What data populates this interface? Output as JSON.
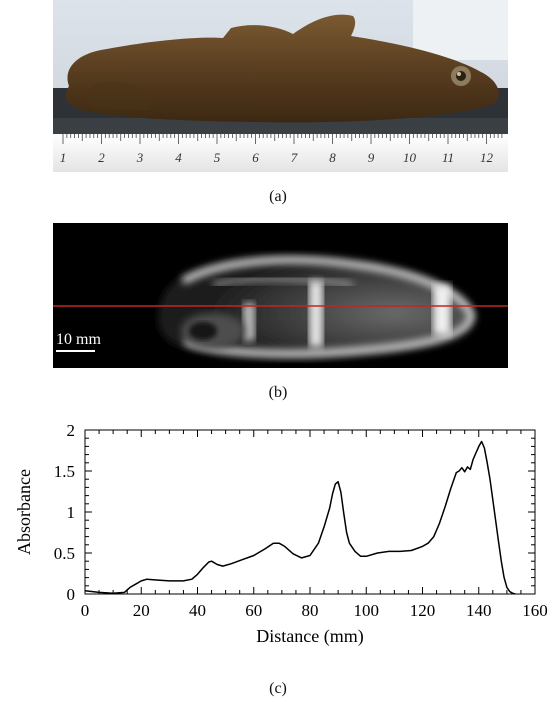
{
  "panels": {
    "a": {
      "caption": "(a)",
      "ruler_numbers": [
        "1",
        "2",
        "3",
        "4",
        "5",
        "6",
        "7",
        "8",
        "9",
        "10",
        "11",
        "12"
      ]
    },
    "b": {
      "caption": "(b)",
      "scale_bar_label": "10 mm",
      "colors": {
        "profile_line": "#c0281e",
        "background": "#000000"
      }
    },
    "c": {
      "caption": "(c)"
    }
  },
  "chart_data": {
    "type": "line",
    "xlabel": "Distance (mm)",
    "ylabel": "Absorbance",
    "xlim": [
      0,
      160
    ],
    "ylim": [
      0,
      2
    ],
    "xticks": [
      0,
      20,
      40,
      60,
      80,
      100,
      120,
      140,
      160
    ],
    "yticks": [
      0,
      0.5,
      1,
      1.5,
      2
    ],
    "ytick_labels": [
      "0",
      "0.5",
      "1",
      "1.5",
      "2"
    ],
    "grid": false,
    "series": [
      {
        "color": "#000000",
        "x": [
          0,
          5,
          10,
          14,
          16,
          18,
          20,
          22,
          26,
          30,
          35,
          38,
          40,
          42,
          44,
          45,
          47,
          49,
          52,
          56,
          60,
          64,
          67,
          69,
          71,
          74,
          77,
          80,
          83,
          85,
          87,
          88,
          89,
          90,
          91,
          92,
          93,
          94,
          96,
          98,
          100,
          104,
          108,
          112,
          116,
          120,
          122,
          124,
          126,
          128,
          130,
          132,
          133,
          134,
          135,
          136,
          137,
          138,
          139,
          140,
          141,
          142,
          143,
          144,
          145,
          146,
          147,
          148,
          149,
          150,
          151,
          152,
          153
        ],
        "y": [
          0.04,
          0.02,
          0.01,
          0.02,
          0.08,
          0.12,
          0.16,
          0.18,
          0.17,
          0.16,
          0.16,
          0.18,
          0.24,
          0.32,
          0.39,
          0.4,
          0.36,
          0.34,
          0.37,
          0.42,
          0.47,
          0.55,
          0.62,
          0.62,
          0.58,
          0.49,
          0.44,
          0.47,
          0.62,
          0.82,
          1.05,
          1.22,
          1.34,
          1.37,
          1.24,
          0.98,
          0.75,
          0.62,
          0.52,
          0.46,
          0.46,
          0.5,
          0.52,
          0.52,
          0.53,
          0.58,
          0.62,
          0.7,
          0.86,
          1.06,
          1.28,
          1.48,
          1.5,
          1.54,
          1.49,
          1.55,
          1.52,
          1.64,
          1.72,
          1.8,
          1.86,
          1.78,
          1.6,
          1.4,
          1.15,
          0.9,
          0.65,
          0.4,
          0.2,
          0.08,
          0.03,
          0.01,
          0.0
        ]
      }
    ]
  }
}
